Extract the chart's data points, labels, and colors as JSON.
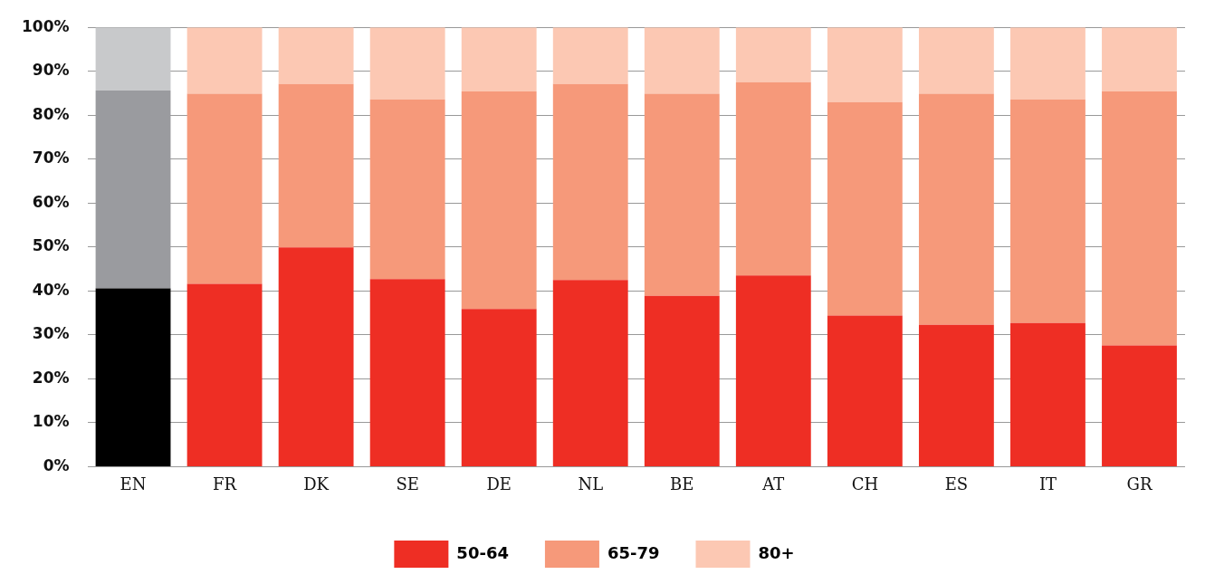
{
  "chart_data": {
    "type": "bar",
    "stacked": true,
    "categories": [
      "EN",
      "FR",
      "DK",
      "SE",
      "DE",
      "NL",
      "BE",
      "AT",
      "CH",
      "ES",
      "IT",
      "GR"
    ],
    "series": [
      {
        "name": "50-64",
        "color": "#ee2e24",
        "colors": [
          "#000000",
          "#ee2e24",
          "#ee2e24",
          "#ee2e24",
          "#ee2e24",
          "#ee2e24",
          "#ee2e24",
          "#ee2e24",
          "#ee2e24",
          "#ee2e24",
          "#ee2e24",
          "#ee2e24"
        ],
        "values": [
          40.6,
          41.6,
          49.9,
          42.7,
          35.9,
          42.5,
          38.9,
          43.5,
          34.4,
          32.3,
          32.7,
          27.6
        ]
      },
      {
        "name": "65-79",
        "color": "#f6997a",
        "colors": [
          "#9a9b9f",
          "#f6997a",
          "#f6997a",
          "#f6997a",
          "#f6997a",
          "#f6997a",
          "#f6997a",
          "#f6997a",
          "#f6997a",
          "#f6997a",
          "#f6997a",
          "#f6997a"
        ],
        "values": [
          45.0,
          43.3,
          37.2,
          40.9,
          49.5,
          44.6,
          46.0,
          44.0,
          48.6,
          52.6,
          50.9,
          57.8
        ]
      },
      {
        "name": "80+",
        "color": "#fcc8b3",
        "colors": [
          "#c8c9cb",
          "#fcc8b3",
          "#fcc8b3",
          "#fcc8b3",
          "#fcc8b3",
          "#fcc8b3",
          "#fcc8b3",
          "#fcc8b3",
          "#fcc8b3",
          "#fcc8b3",
          "#fcc8b3",
          "#fcc8b3"
        ],
        "values": [
          14.4,
          15.1,
          12.9,
          16.4,
          14.6,
          12.9,
          15.1,
          12.5,
          17.0,
          15.1,
          16.4,
          14.6
        ]
      }
    ],
    "ylim": [
      0,
      100
    ],
    "yticks": [
      {
        "value": 0,
        "label": "0%"
      },
      {
        "value": 10,
        "label": "10%"
      },
      {
        "value": 20,
        "label": "20%"
      },
      {
        "value": 30,
        "label": "30%"
      },
      {
        "value": 40,
        "label": "40%"
      },
      {
        "value": 50,
        "label": "50%"
      },
      {
        "value": 60,
        "label": "60%"
      },
      {
        "value": 70,
        "label": "70%"
      },
      {
        "value": 80,
        "label": "80%"
      },
      {
        "value": 90,
        "label": "90%"
      },
      {
        "value": 100,
        "label": "100%"
      }
    ],
    "grid": "y",
    "legend": "bottom"
  }
}
